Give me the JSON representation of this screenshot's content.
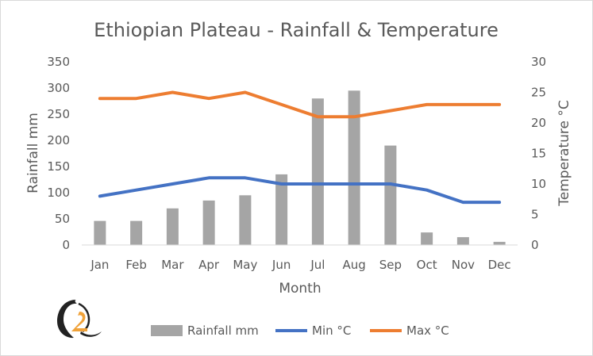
{
  "chart_data": {
    "type": "bar+line",
    "title": "Ethiopian Plateau - Rainfall & Temperature",
    "categories": [
      "Jan",
      "Feb",
      "Mar",
      "Apr",
      "May",
      "Jun",
      "Jul",
      "Aug",
      "Sep",
      "Oct",
      "Nov",
      "Dec"
    ],
    "xlabel": "Month",
    "ylabel": "Rainfall mm",
    "y2label": "Temperature °C",
    "ylim": [
      0,
      350
    ],
    "y2lim": [
      0,
      30
    ],
    "yticks": [
      0,
      50,
      100,
      150,
      200,
      250,
      300,
      350
    ],
    "y2ticks": [
      0,
      5,
      10,
      15,
      20,
      25,
      30
    ],
    "grid": false,
    "legend_position": "bottom",
    "series": [
      {
        "name": "Rainfall mm",
        "type": "bar",
        "axis": "left",
        "color": "#a5a5a5",
        "values": [
          46,
          46,
          70,
          85,
          95,
          135,
          280,
          295,
          190,
          24,
          15,
          6
        ]
      },
      {
        "name": "Min °C",
        "type": "line",
        "axis": "right",
        "color": "#4472c4",
        "values": [
          8,
          9,
          10,
          11,
          11,
          10,
          10,
          10,
          10,
          9,
          7,
          7
        ]
      },
      {
        "name": "Max °C",
        "type": "line",
        "axis": "right",
        "color": "#ed7d31",
        "values": [
          24,
          24,
          25,
          24,
          25,
          23,
          21,
          21,
          22,
          23,
          23,
          23
        ]
      }
    ]
  },
  "logo": {
    "name": "Q logo"
  }
}
